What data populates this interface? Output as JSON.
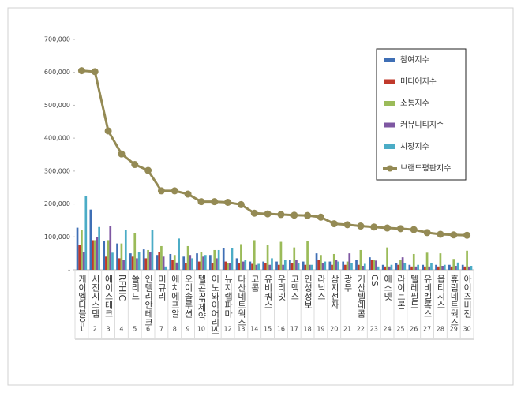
{
  "chart_data": {
    "type": "bar",
    "categories": [
      "케이엠더블유",
      "서진시스템",
      "에이스테크",
      "RFHIC",
      "쏠리드",
      "인텔리안테크",
      "머큐리",
      "에치에프알",
      "오이솔루션",
      "텔콘RF제약",
      "이노와이어리스",
      "뉴지랩파마",
      "다산네트웍스",
      "코콤",
      "유비쿼스",
      "우리넷",
      "코맥스",
      "인성정보",
      "라닉스",
      "삼지전자",
      "광무",
      "기산텔레콤",
      "CS",
      "에스넷",
      "라이트론",
      "텔레필드",
      "유비벨록스",
      "옵티시스",
      "휴림네트웍스",
      "아이즈비전"
    ],
    "category_numbers": [
      1,
      2,
      3,
      4,
      5,
      6,
      7,
      8,
      9,
      10,
      11,
      12,
      13,
      14,
      15,
      16,
      17,
      18,
      19,
      20,
      21,
      22,
      23,
      24,
      25,
      26,
      27,
      28,
      29,
      30
    ],
    "ylim": [
      0,
      700000
    ],
    "yticks": [
      {
        "value": 0,
        "label": "-"
      },
      {
        "value": 100000,
        "label": "100,000"
      },
      {
        "value": 200000,
        "label": "200,000"
      },
      {
        "value": 300000,
        "label": "300,000"
      },
      {
        "value": 400000,
        "label": "400,000"
      },
      {
        "value": 500000,
        "label": "500,000"
      },
      {
        "value": 600000,
        "label": "600,000"
      },
      {
        "value": 700000,
        "label": "700,000"
      }
    ],
    "legend": "upper right",
    "series": [
      {
        "name": "참여지수",
        "color": "#3f6fb5",
        "values": [
          128000,
          183000,
          88000,
          80000,
          50000,
          62000,
          45000,
          48000,
          40000,
          50000,
          45000,
          65000,
          35000,
          25000,
          25000,
          25000,
          30000,
          25000,
          50000,
          25000,
          25000,
          30000,
          38000,
          15000,
          20000,
          15000,
          15000,
          15000,
          15000,
          15000
        ]
      },
      {
        "name": "미디어지수",
        "color": "#c0392b",
        "values": [
          75000,
          90000,
          40000,
          35000,
          40000,
          35000,
          55000,
          30000,
          20000,
          25000,
          20000,
          25000,
          20000,
          18000,
          20000,
          15000,
          20000,
          15000,
          30000,
          15000,
          15000,
          15000,
          30000,
          10000,
          15000,
          10000,
          10000,
          10000,
          10000,
          10000
        ]
      },
      {
        "name": "소통지수",
        "color": "#9bbb59",
        "values": [
          122000,
          90000,
          90000,
          80000,
          112000,
          60000,
          72000,
          45000,
          72000,
          55000,
          60000,
          20000,
          78000,
          90000,
          75000,
          85000,
          68000,
          88000,
          45000,
          48000,
          25000,
          60000,
          30000,
          68000,
          30000,
          48000,
          52000,
          50000,
          33000,
          58000
        ]
      },
      {
        "name": "커뮤니티지수",
        "color": "#7e57a2",
        "values": [
          55000,
          100000,
          133000,
          30000,
          35000,
          55000,
          40000,
          22000,
          45000,
          40000,
          35000,
          20000,
          25000,
          15000,
          15000,
          15000,
          30000,
          15000,
          20000,
          30000,
          50000,
          12000,
          28000,
          10000,
          38000,
          10000,
          10000,
          12000,
          12000,
          10000
        ]
      },
      {
        "name": "시장지수",
        "color": "#4bacc6",
        "values": [
          225000,
          130000,
          52000,
          120000,
          55000,
          122000,
          10000,
          95000,
          35000,
          45000,
          60000,
          65000,
          30000,
          18000,
          35000,
          30000,
          20000,
          15000,
          25000,
          25000,
          20000,
          18000,
          10000,
          15000,
          20000,
          15000,
          20000,
          15000,
          22000,
          12000
        ]
      },
      {
        "name": "브랜드평판지수",
        "color": "#948a54",
        "type": "line",
        "values": [
          605000,
          602000,
          422000,
          352000,
          320000,
          302000,
          240000,
          240000,
          230000,
          207000,
          207000,
          205000,
          198000,
          172000,
          170000,
          168000,
          166000,
          165000,
          160000,
          140000,
          137000,
          133000,
          130000,
          127000,
          125000,
          122000,
          113000,
          108000,
          106000,
          105000
        ]
      }
    ]
  }
}
